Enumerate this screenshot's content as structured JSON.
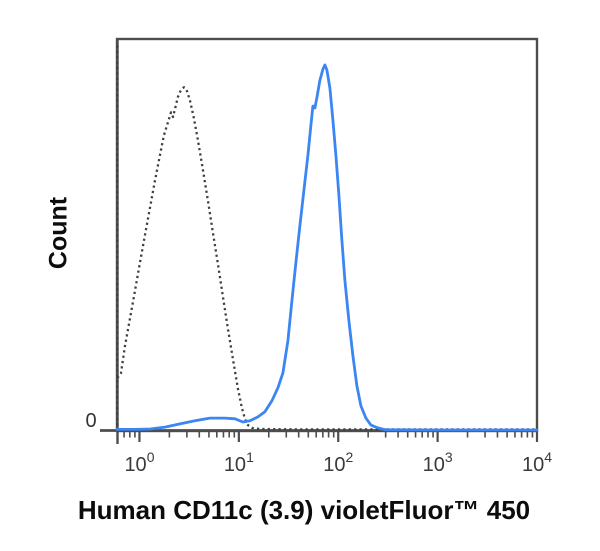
{
  "chart_data": {
    "type": "line",
    "title": "",
    "xlabel": "Human CD11c (3.9) violetFluor™ 450",
    "ylabel": "Count",
    "y_zero_label": "0",
    "x_scale": "log",
    "x_axis_decades": [
      0,
      1,
      2,
      3,
      4
    ],
    "x_tick_base": "10",
    "x_range_decades": [
      -0.226,
      4
    ],
    "y_range_percent": [
      0,
      100
    ],
    "grid": false,
    "legend_position": "none",
    "axis_color": "#4d4d4d",
    "tick_label_color": "#3a3a3a",
    "background_color": "#ffffff",
    "series": [
      {
        "name": "isotype-control",
        "label": "Isotype control (dotted)",
        "style": "dotted",
        "color": "#3f3f3f",
        "width": 2.3,
        "edge_spike": {
          "x_decade": -0.222,
          "height_pct": 99
        },
        "points_log10_pct": [
          [
            -0.222,
            13.5
          ],
          [
            -0.186,
            14.8
          ],
          [
            -0.146,
            21.7
          ],
          [
            -0.096,
            28.6
          ],
          [
            -0.045,
            35.8
          ],
          [
            0.005,
            43.0
          ],
          [
            0.055,
            49.9
          ],
          [
            0.106,
            57.0
          ],
          [
            0.156,
            63.9
          ],
          [
            0.206,
            70.3
          ],
          [
            0.246,
            75.4
          ],
          [
            0.287,
            78.8
          ],
          [
            0.317,
            81.3
          ],
          [
            0.337,
            80.1
          ],
          [
            0.367,
            83.1
          ],
          [
            0.387,
            85.2
          ],
          [
            0.417,
            87.0
          ],
          [
            0.448,
            87.7
          ],
          [
            0.478,
            86.7
          ],
          [
            0.508,
            84.4
          ],
          [
            0.548,
            79.8
          ],
          [
            0.588,
            74.2
          ],
          [
            0.639,
            66.5
          ],
          [
            0.689,
            58.8
          ],
          [
            0.739,
            50.6
          ],
          [
            0.79,
            42.5
          ],
          [
            0.84,
            34.3
          ],
          [
            0.89,
            26.1
          ],
          [
            0.94,
            18.4
          ],
          [
            0.991,
            10.7
          ],
          [
            1.031,
            5.9
          ],
          [
            1.061,
            3.1
          ],
          [
            1.091,
            1.5
          ],
          [
            1.132,
            0.8
          ],
          [
            1.212,
            0.5
          ],
          [
            1.6,
            0.4
          ],
          [
            2.2,
            0.4
          ],
          [
            2.8,
            0.4
          ],
          [
            3.4,
            0.4
          ],
          [
            4.0,
            0.4
          ]
        ]
      },
      {
        "name": "cd11c-stained",
        "label": "Human CD11c violetFluor 450 (solid blue)",
        "style": "solid",
        "color": "#3b86f2",
        "width": 2.8,
        "points_log10_pct": [
          [
            -0.226,
            0.4
          ],
          [
            -0.05,
            0.4
          ],
          [
            0.106,
            0.5
          ],
          [
            0.257,
            1.0
          ],
          [
            0.407,
            1.8
          ],
          [
            0.558,
            2.6
          ],
          [
            0.709,
            3.3
          ],
          [
            0.86,
            3.3
          ],
          [
            0.961,
            3.1
          ],
          [
            1.041,
            2.3
          ],
          [
            1.112,
            2.6
          ],
          [
            1.192,
            3.6
          ],
          [
            1.262,
            4.9
          ],
          [
            1.333,
            7.7
          ],
          [
            1.393,
            11.0
          ],
          [
            1.443,
            14.8
          ],
          [
            1.494,
            23.0
          ],
          [
            1.534,
            33.2
          ],
          [
            1.574,
            43.0
          ],
          [
            1.614,
            52.4
          ],
          [
            1.655,
            61.4
          ],
          [
            1.695,
            70.3
          ],
          [
            1.725,
            78.0
          ],
          [
            1.745,
            82.9
          ],
          [
            1.765,
            82.4
          ],
          [
            1.786,
            85.2
          ],
          [
            1.816,
            89.5
          ],
          [
            1.846,
            92.3
          ],
          [
            1.866,
            93.4
          ],
          [
            1.886,
            92.1
          ],
          [
            1.916,
            87.5
          ],
          [
            1.946,
            79.3
          ],
          [
            1.977,
            70.3
          ],
          [
            2.007,
            60.1
          ],
          [
            2.037,
            48.6
          ],
          [
            2.067,
            38.4
          ],
          [
            2.107,
            28.1
          ],
          [
            2.148,
            19.2
          ],
          [
            2.188,
            11.5
          ],
          [
            2.228,
            6.4
          ],
          [
            2.278,
            3.3
          ],
          [
            2.329,
            1.5
          ],
          [
            2.399,
            0.8
          ],
          [
            2.48,
            0.3
          ],
          [
            3.0,
            0.25
          ],
          [
            3.5,
            0.25
          ],
          [
            4.0,
            0.25
          ]
        ]
      }
    ]
  }
}
